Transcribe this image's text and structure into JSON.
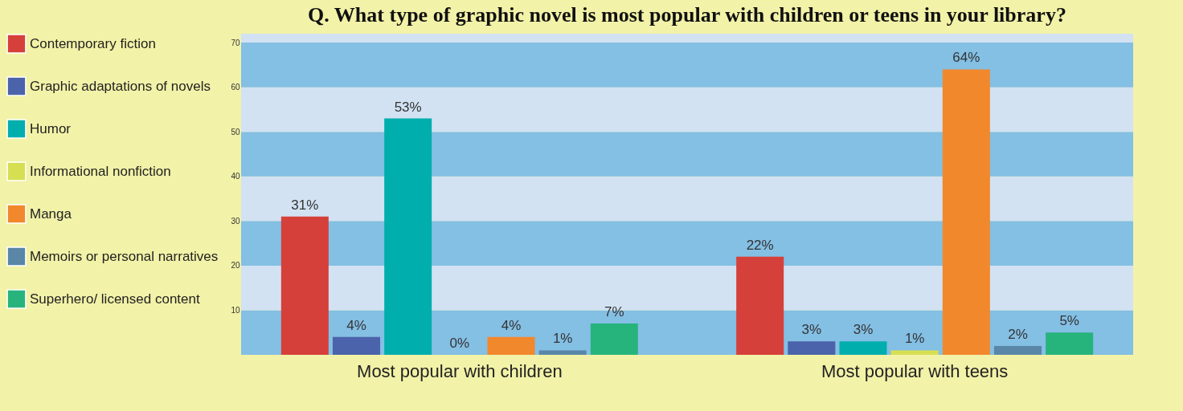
{
  "chart_data": {
    "type": "bar",
    "title": "Q. What type of graphic novel is most popular with children or teens in your library?",
    "categories": [
      "Most popular with children",
      "Most popular with teens"
    ],
    "series": [
      {
        "name": "Contemporary fiction",
        "color": "#d6403a",
        "values": [
          31,
          22
        ],
        "value_labels": [
          "31%",
          "22%"
        ]
      },
      {
        "name": "Graphic adaptations of novels",
        "color": "#4b63aa",
        "values": [
          4,
          3
        ],
        "value_labels": [
          "4%",
          "3%"
        ]
      },
      {
        "name": "Humor",
        "color": "#00aead",
        "values": [
          53,
          3
        ],
        "value_labels": [
          "53%",
          "3%"
        ]
      },
      {
        "name": "Informational nonfiction",
        "color": "#d6df52",
        "values": [
          0,
          1
        ],
        "value_labels": [
          "0%",
          "1%"
        ]
      },
      {
        "name": "Manga",
        "color": "#f2882c",
        "values": [
          4,
          64
        ],
        "value_labels": [
          "4%",
          "64%"
        ]
      },
      {
        "name": "Memoirs or personal narratives",
        "color": "#5a86a8",
        "values": [
          1,
          2
        ],
        "value_labels": [
          "1%",
          "2%"
        ]
      },
      {
        "name": "Superhero/ licensed content",
        "color": "#26b47c",
        "values": [
          7,
          5
        ],
        "value_labels": [
          "7%",
          "5%"
        ]
      }
    ],
    "ylim": [
      0,
      72
    ],
    "yticks": [
      10,
      20,
      30,
      40,
      50,
      60,
      70
    ],
    "legend": "left",
    "bands": [
      {
        "axis": "y",
        "from": 0,
        "to": 10,
        "color": "#84bfe4"
      },
      {
        "axis": "y",
        "from": 10,
        "to": 20,
        "color": "#d2e2f3"
      },
      {
        "axis": "y",
        "from": 20,
        "to": 30,
        "color": "#84bfe4"
      },
      {
        "axis": "y",
        "from": 30,
        "to": 40,
        "color": "#d2e2f3"
      },
      {
        "axis": "y",
        "from": 40,
        "to": 50,
        "color": "#84bfe4"
      },
      {
        "axis": "y",
        "from": 50,
        "to": 60,
        "color": "#d2e2f3"
      },
      {
        "axis": "y",
        "from": 60,
        "to": 70,
        "color": "#84bfe4"
      },
      {
        "axis": "y",
        "from": 70,
        "to": 72,
        "color": "#d2e2f3"
      }
    ]
  }
}
